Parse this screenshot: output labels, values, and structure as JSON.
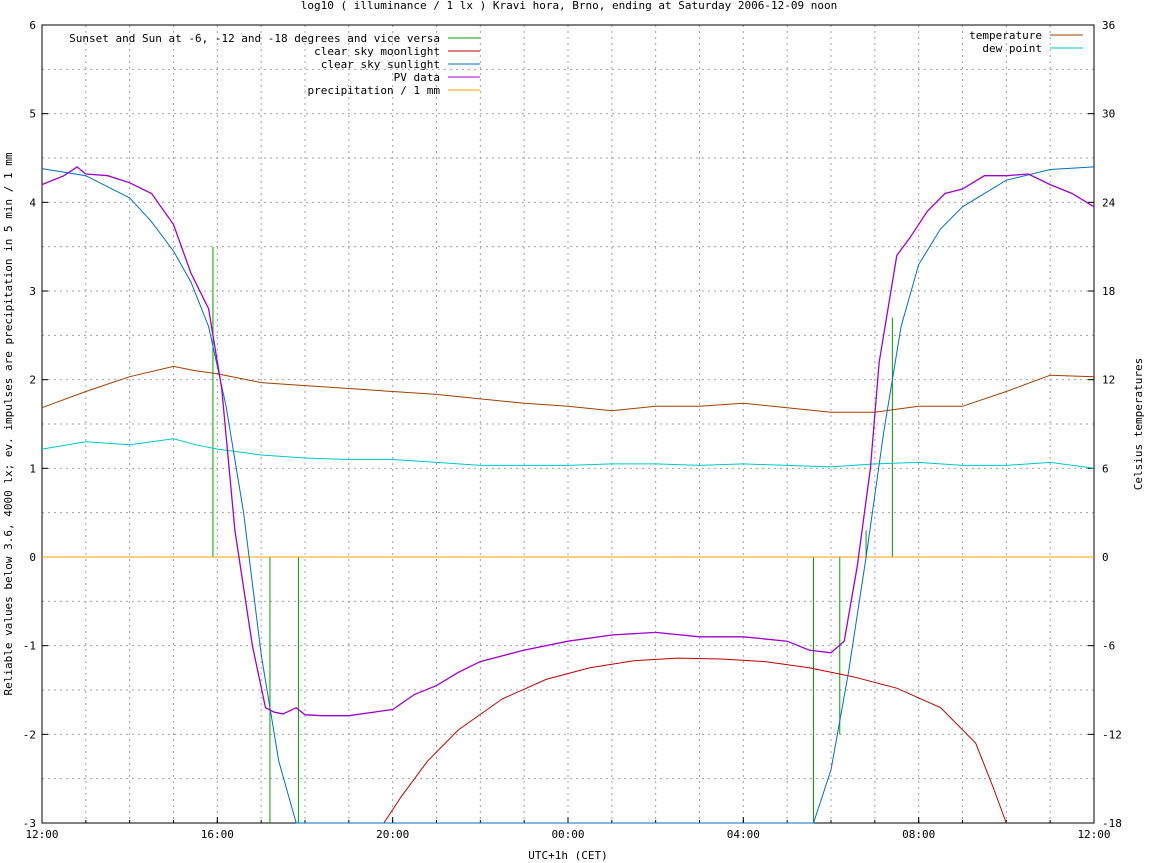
{
  "chart_data": {
    "type": "line",
    "title": "log10 ( illuminance / 1 lx ) Kravi hora, Brno, ending at Saturday 2006-12-09 noon",
    "xlabel": "UTC+1h (CET)",
    "ylabel": "Reliable values below 3.6, 4000 lx; ev. impulses are precipitation in 5 min / 1 mm",
    "y2label": "Celsius temperatures",
    "x_range_hours": [
      0,
      24
    ],
    "x_tick_labels": [
      "12:00",
      "16:00",
      "20:00",
      "00:00",
      "04:00",
      "08:00",
      "12:00"
    ],
    "ylim": [
      -3,
      6
    ],
    "y_tick_labels": [
      "-3",
      "-2",
      "-1",
      "0",
      "1",
      "2",
      "3",
      "4",
      "5",
      "6"
    ],
    "y2lim": [
      -18,
      36
    ],
    "y2_tick_labels": [
      "-18",
      "-12",
      "-6",
      "0",
      "6",
      "12",
      "18",
      "24",
      "30",
      "36"
    ],
    "grid": true,
    "legend_left": [
      {
        "name": "Sunset and Sun at -6, -12 and -18 degrees and vice versa",
        "color": "#00a000"
      },
      {
        "name": "clear sky moonlight",
        "color": "#c00000"
      },
      {
        "name": "clear sky sunlight",
        "color": "#0070c0"
      },
      {
        "name": "PV data",
        "color": "#a000d0"
      },
      {
        "name": "precipitation / 1 mm",
        "color": "#ffa000"
      }
    ],
    "legend_right": [
      {
        "name": "temperature",
        "color": "#a04000"
      },
      {
        "name": "dew point",
        "color": "#00c8c8"
      }
    ],
    "sun_event_lines": [
      {
        "x": 3.9,
        "y": 3.5
      },
      {
        "x": 5.2,
        "y": -3
      },
      {
        "x": 5.85,
        "y": -3
      },
      {
        "x": 17.6,
        "y": -3
      },
      {
        "x": 18.2,
        "y": -2.0
      },
      {
        "x": 18.8,
        "y": 0.3
      },
      {
        "x": 19.4,
        "y": 2.7
      }
    ],
    "series": [
      {
        "name": "clear sky sunlight",
        "x": [
          0,
          1,
          2,
          2.5,
          3,
          3.4,
          3.8,
          4.2,
          4.6,
          5.0,
          5.4,
          5.8,
          17.6,
          18.0,
          18.4,
          18.8,
          19.2,
          19.6,
          20.0,
          20.5,
          21,
          22,
          23,
          24
        ],
        "y": [
          4.38,
          4.3,
          4.05,
          3.78,
          3.45,
          3.1,
          2.6,
          1.7,
          0.5,
          -1.1,
          -2.3,
          -3.0,
          -3.0,
          -2.4,
          -1.3,
          0.0,
          1.4,
          2.6,
          3.3,
          3.7,
          3.95,
          4.25,
          4.37,
          4.4
        ]
      },
      {
        "name": "clear sky moonlight",
        "x": [
          7.8,
          8.2,
          8.8,
          9.5,
          10.5,
          11.5,
          12.5,
          13.5,
          14.5,
          15.5,
          16.5,
          17.5,
          18.5,
          19.5,
          20.5,
          21.3,
          21.7,
          22.0
        ],
        "y": [
          -3.0,
          -2.7,
          -2.3,
          -1.95,
          -1.6,
          -1.38,
          -1.25,
          -1.17,
          -1.14,
          -1.15,
          -1.18,
          -1.25,
          -1.35,
          -1.48,
          -1.7,
          -2.1,
          -2.6,
          -3.0
        ]
      },
      {
        "name": "PV data",
        "x": [
          0,
          0.5,
          0.8,
          1.0,
          1.5,
          2.0,
          2.5,
          3.0,
          3.4,
          3.8,
          4.1,
          4.4,
          4.8,
          5.1,
          5.3,
          5.5,
          5.8,
          6.0,
          6.4,
          7.0,
          8.0,
          8.5,
          9.0,
          9.5,
          10.0,
          11.0,
          12.0,
          13.0,
          14.0,
          15.0,
          16.0,
          17.0,
          17.5,
          18.0,
          18.3,
          18.6,
          18.9,
          19.1,
          19.3,
          19.5,
          19.8,
          20.2,
          20.6,
          21.0,
          21.5,
          22.0,
          22.5,
          23.0,
          23.5,
          24.0
        ],
        "y": [
          4.2,
          4.3,
          4.4,
          4.32,
          4.3,
          4.22,
          4.1,
          3.75,
          3.2,
          2.8,
          1.9,
          0.3,
          -1.0,
          -1.7,
          -1.75,
          -1.77,
          -1.7,
          -1.78,
          -1.79,
          -1.79,
          -1.72,
          -1.55,
          -1.45,
          -1.3,
          -1.18,
          -1.05,
          -0.95,
          -0.88,
          -0.85,
          -0.9,
          -0.9,
          -0.95,
          -1.05,
          -1.08,
          -0.95,
          -0.1,
          1.0,
          2.2,
          2.8,
          3.4,
          3.6,
          3.9,
          4.1,
          4.15,
          4.3,
          4.3,
          4.32,
          4.2,
          4.1,
          3.95
        ]
      },
      {
        "name": "temperature",
        "x": [
          0,
          1,
          2,
          3,
          3.5,
          4,
          5,
          6,
          7,
          8,
          9,
          10,
          11,
          12,
          13,
          14,
          15,
          16,
          17,
          18,
          19,
          20,
          21,
          22,
          23,
          24
        ],
        "y2": [
          10.1,
          11.2,
          12.2,
          12.9,
          12.6,
          12.4,
          11.8,
          11.6,
          11.4,
          11.2,
          11.0,
          10.7,
          10.4,
          10.2,
          9.9,
          10.2,
          10.2,
          10.4,
          10.1,
          9.8,
          9.8,
          10.2,
          10.2,
          11.2,
          12.3,
          12.2
        ]
      },
      {
        "name": "dew point",
        "x": [
          0,
          1,
          2,
          3,
          3.5,
          4,
          5,
          6,
          7,
          8,
          9,
          10,
          11,
          12,
          13,
          14,
          15,
          16,
          17,
          18,
          19,
          20,
          21,
          22,
          23,
          24
        ],
        "y2": [
          7.3,
          7.8,
          7.6,
          8.0,
          7.6,
          7.3,
          6.9,
          6.7,
          6.6,
          6.6,
          6.4,
          6.2,
          6.2,
          6.2,
          6.3,
          6.3,
          6.2,
          6.3,
          6.2,
          6.1,
          6.3,
          6.4,
          6.2,
          6.2,
          6.4,
          6.0
        ]
      },
      {
        "name": "precipitation / 1 mm",
        "x": [
          0,
          24
        ],
        "y": [
          0,
          0
        ]
      }
    ]
  }
}
